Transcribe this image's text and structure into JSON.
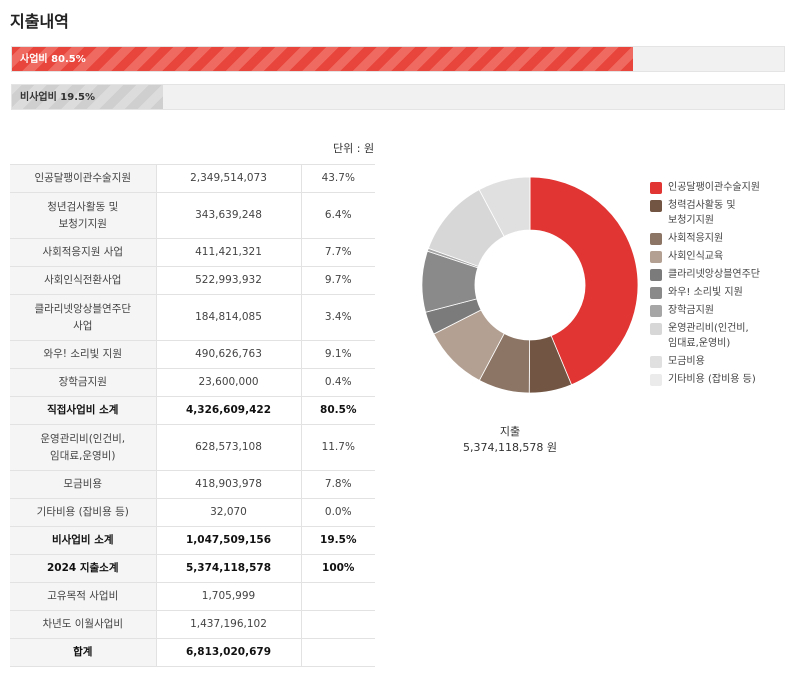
{
  "page": {
    "title": "지출내역"
  },
  "bars": [
    {
      "label": "사업비 80.5%",
      "percent": 80.5,
      "style": "red"
    },
    {
      "label": "비사업비 19.5%",
      "percent": 19.5,
      "style": "grey"
    }
  ],
  "unit": "단위 : 원",
  "table": {
    "rows": [
      {
        "name": "인공달팽이관수술지원",
        "amount": "2,349,514,073",
        "pct": "43.7%",
        "bold": false
      },
      {
        "name": "청년검사활동 및\n보청기지원",
        "amount": "343,639,248",
        "pct": "6.4%",
        "bold": false
      },
      {
        "name": "사회적응지원 사업",
        "amount": "411,421,321",
        "pct": "7.7%",
        "bold": false
      },
      {
        "name": "사회인식전환사업",
        "amount": "522,993,932",
        "pct": "9.7%",
        "bold": false
      },
      {
        "name": "클라리넷앙상블연주단\n사업",
        "amount": "184,814,085",
        "pct": "3.4%",
        "bold": false
      },
      {
        "name": "와우! 소리빛 지원",
        "amount": "490,626,763",
        "pct": "9.1%",
        "bold": false
      },
      {
        "name": "장학금지원",
        "amount": "23,600,000",
        "pct": "0.4%",
        "bold": false
      },
      {
        "name": "직접사업비 소계",
        "amount": "4,326,609,422",
        "pct": "80.5%",
        "bold": true
      },
      {
        "name": "운영관리비(인건비,\n임대료,운영비)",
        "amount": "628,573,108",
        "pct": "11.7%",
        "bold": false
      },
      {
        "name": "모금비용",
        "amount": "418,903,978",
        "pct": "7.8%",
        "bold": false
      },
      {
        "name": "기타비용 (잡비용 등)",
        "amount": "32,070",
        "pct": "0.0%",
        "bold": false
      },
      {
        "name": "비사업비 소계",
        "amount": "1,047,509,156",
        "pct": "19.5%",
        "bold": true
      },
      {
        "name": "2024 지출소계",
        "amount": "5,374,118,578",
        "pct": "100%",
        "bold": true
      },
      {
        "name": "고유목적 사업비",
        "amount": "1,705,999",
        "pct": "",
        "bold": false
      },
      {
        "name": "차년도 이월사업비",
        "amount": "1,437,196,102",
        "pct": "",
        "bold": false
      },
      {
        "name": "합계",
        "amount": "6,813,020,679",
        "pct": "",
        "bold": true
      }
    ]
  },
  "chart_data": {
    "type": "pie",
    "donut": true,
    "center_label": "지출",
    "center_value": "5,374,118,578 원",
    "legend_position": "right",
    "categories": [
      "인공달팽이관수술지원",
      "청력검사활동 및\n보청기지원",
      "사회적응지원",
      "사회인식교육",
      "클라리넷앙상블연주단",
      "와우! 소리빛 지원",
      "장학금지원",
      "운영관리비(인건비,\n임대료,운영비)",
      "모금비용",
      "기타비용 (잡비용 등)"
    ],
    "values": [
      2349514073,
      343639248,
      411421321,
      522993932,
      184814085,
      490626763,
      23600000,
      628573108,
      418903978,
      32070
    ],
    "colors": [
      "#e03532",
      "#725542",
      "#8c7565",
      "#b3a092",
      "#7c7b7b",
      "#8a8a8a",
      "#a6a6a6",
      "#d7d7d7",
      "#e0e0e0",
      "#ebebeb"
    ]
  }
}
